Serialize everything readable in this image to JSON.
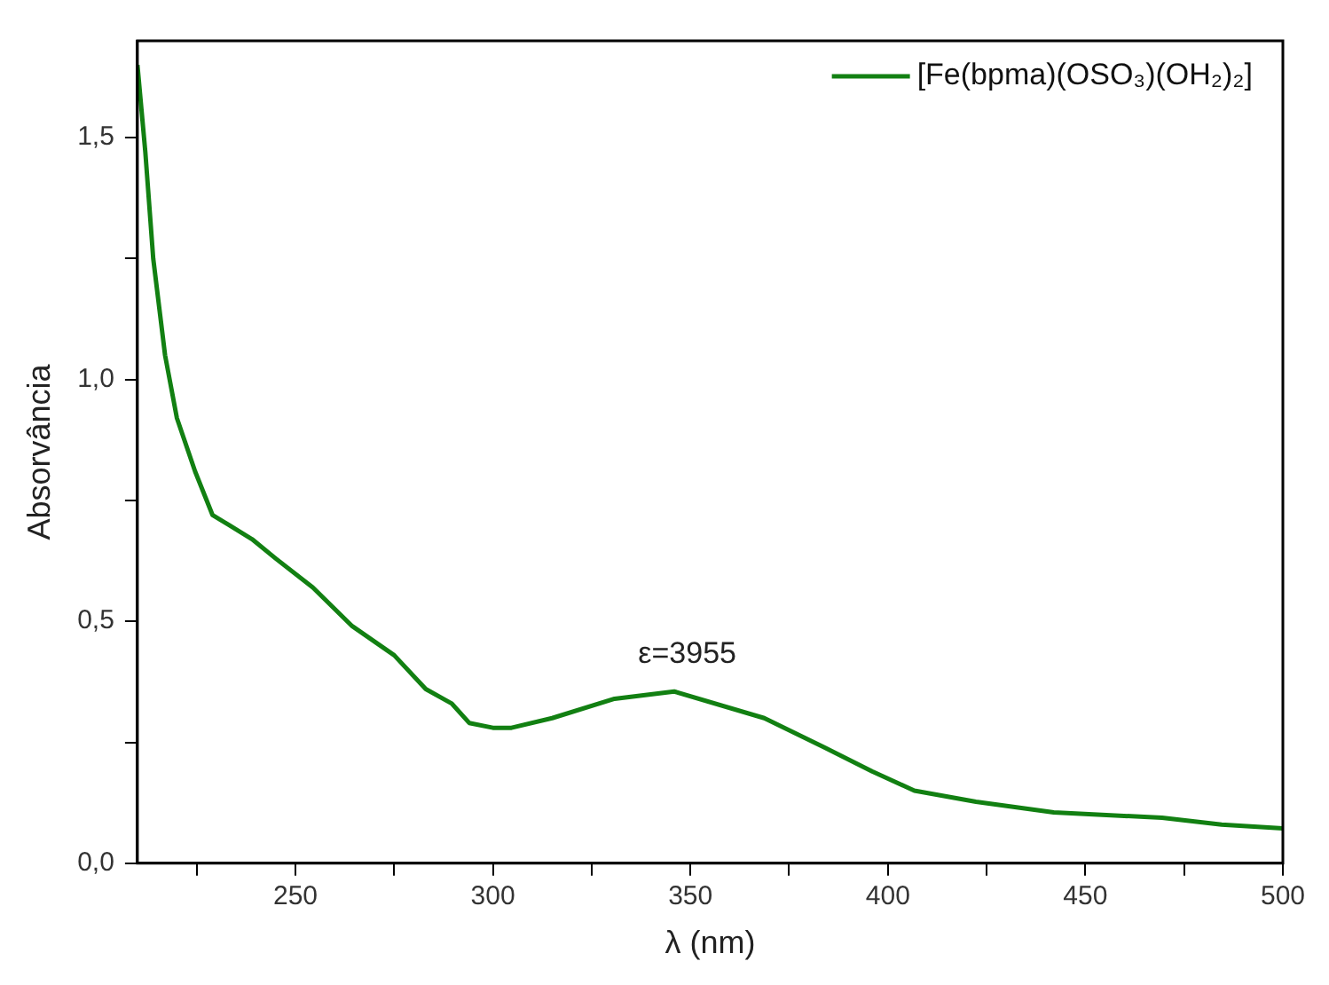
{
  "chart_data": {
    "type": "line",
    "xlabel": "λ (nm)",
    "ylabel": "Absorvância",
    "xlim": [
      210,
      500
    ],
    "xticks": [
      {
        "value": 225,
        "label": null
      },
      250,
      {
        "value": 275,
        "label": null
      },
      300,
      {
        "value": 325,
        "label": null
      },
      350,
      {
        "value": 375,
        "label": null
      },
      400,
      {
        "value": 425,
        "label": null
      },
      450,
      {
        "value": 475,
        "label": null
      },
      500
    ],
    "ylim": [
      0,
      1.7
    ],
    "yticks": [
      {
        "value": 0,
        "label": "0,0"
      },
      {
        "value": 0.25,
        "label": null
      },
      {
        "value": 0.5,
        "label": "0,5"
      },
      {
        "value": 0.75,
        "label": null
      },
      {
        "value": 1,
        "label": "1,0"
      },
      {
        "value": 1.25,
        "label": null
      },
      {
        "value": 1.5,
        "label": "1,5"
      }
    ],
    "grid": false,
    "legend": "top right",
    "marker": "none",
    "line_style": "solid",
    "annotations": [
      "ε=3955"
    ],
    "series": [
      {
        "name": "[Fe(bpma)(OSO₃)(OH₂)₂]",
        "color": "#128012",
        "x": [
          210,
          212,
          214,
          217,
          220,
          224.6,
          229,
          233,
          239,
          245,
          254.4,
          264.4,
          275,
          283,
          289.6,
          294,
          300,
          304.7,
          315,
          330.8,
          345.9,
          368.7,
          383.8,
          396,
          406.7,
          422.3,
          442,
          469.4,
          484.5,
          500
        ],
        "values": [
          1.65,
          1.47,
          1.25,
          1.05,
          0.92,
          0.81,
          0.72,
          0.7,
          0.67,
          0.63,
          0.57,
          0.49,
          0.43,
          0.36,
          0.33,
          0.29,
          0.28,
          0.28,
          0.3,
          0.34,
          0.355,
          0.3,
          0.24,
          0.19,
          0.15,
          0.127,
          0.105,
          0.094,
          0.08,
          0.072
        ]
      }
    ]
  }
}
